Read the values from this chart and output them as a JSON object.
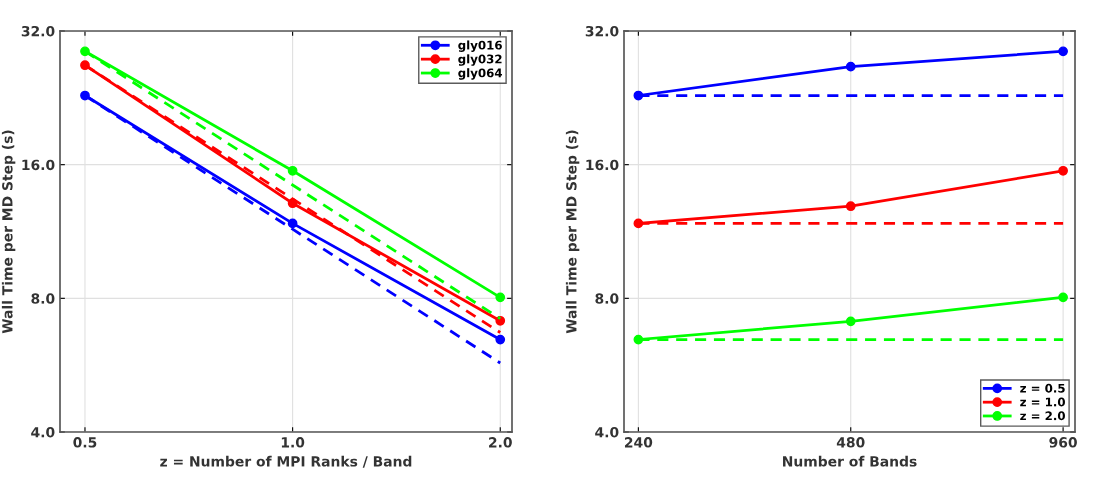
{
  "chart_data": [
    {
      "type": "line",
      "xlabel": "z = Number of MPI Ranks / Band",
      "ylabel": "Wall Time per MD Step (s)",
      "x": [
        0.5,
        1.0,
        2.0
      ],
      "log": "xy",
      "grid": true,
      "legend": "top right",
      "xlim": [
        0.46,
        2.08
      ],
      "ylim": [
        4,
        32
      ],
      "xticks": [
        {
          "value": 0.5,
          "label": "0.5"
        },
        {
          "value": 1.0,
          "label": "1.0"
        },
        {
          "value": 2.0,
          "label": "2.0"
        }
      ],
      "yticks": [
        {
          "value": 4,
          "label": "4.0"
        },
        {
          "value": 8,
          "label": "8.0"
        },
        {
          "value": 16,
          "label": "16.0"
        },
        {
          "value": 32,
          "label": "32.0"
        }
      ],
      "series": [
        {
          "name": "gly016",
          "color": "#0000ff",
          "values": [
            22.9,
            11.8,
            6.46
          ],
          "marker": "circle",
          "line_style": "solid"
        },
        {
          "name": "gly032",
          "color": "#ff0000",
          "values": [
            26.8,
            13.1,
            7.12
          ],
          "marker": "circle",
          "line_style": "solid"
        },
        {
          "name": "gly064",
          "color": "#00ff00",
          "values": [
            28.8,
            15.5,
            8.04
          ],
          "marker": "circle",
          "line_style": "solid"
        },
        {
          "color": "#0000ff",
          "values": [
            22.9,
            11.45,
            5.72
          ],
          "marker": "none",
          "line_style": "dashed"
        },
        {
          "color": "#ff0000",
          "values": [
            26.8,
            13.4,
            6.7
          ],
          "marker": "none",
          "line_style": "dashed"
        },
        {
          "color": "#00ff00",
          "values": [
            28.8,
            14.4,
            7.2
          ],
          "marker": "none",
          "line_style": "dashed"
        }
      ]
    },
    {
      "type": "line",
      "xlabel": "Number of Bands",
      "ylabel": "Wall Time per MD Step (s)",
      "x": [
        240,
        480,
        960
      ],
      "log": "xy",
      "grid": true,
      "legend": "bottom right",
      "xlim": [
        229,
        998
      ],
      "ylim": [
        4,
        32
      ],
      "xticks": [
        240,
        480,
        960
      ],
      "yticks": [
        {
          "value": 4,
          "label": "4.0"
        },
        {
          "value": 8,
          "label": "8.0"
        },
        {
          "value": 16,
          "label": "16.0"
        },
        {
          "value": 32,
          "label": "32.0"
        }
      ],
      "series": [
        {
          "name": "z = 0.5",
          "color": "#0000ff",
          "values": [
            22.9,
            26.6,
            28.8
          ],
          "marker": "circle",
          "line_style": "solid"
        },
        {
          "name": "z = 1.0",
          "color": "#ff0000",
          "values": [
            11.8,
            12.9,
            15.5
          ],
          "marker": "circle",
          "line_style": "solid"
        },
        {
          "name": "z = 2.0",
          "color": "#00ff00",
          "values": [
            6.46,
            7.1,
            8.04
          ],
          "marker": "circle",
          "line_style": "solid"
        },
        {
          "color": "#0000ff",
          "values": [
            22.9,
            22.9,
            22.9
          ],
          "marker": "none",
          "line_style": "dashed"
        },
        {
          "color": "#ff0000",
          "values": [
            11.8,
            11.8,
            11.8
          ],
          "marker": "none",
          "line_style": "dashed"
        },
        {
          "color": "#00ff00",
          "values": [
            6.46,
            6.46,
            6.46
          ],
          "marker": "none",
          "line_style": "dashed"
        }
      ]
    }
  ]
}
